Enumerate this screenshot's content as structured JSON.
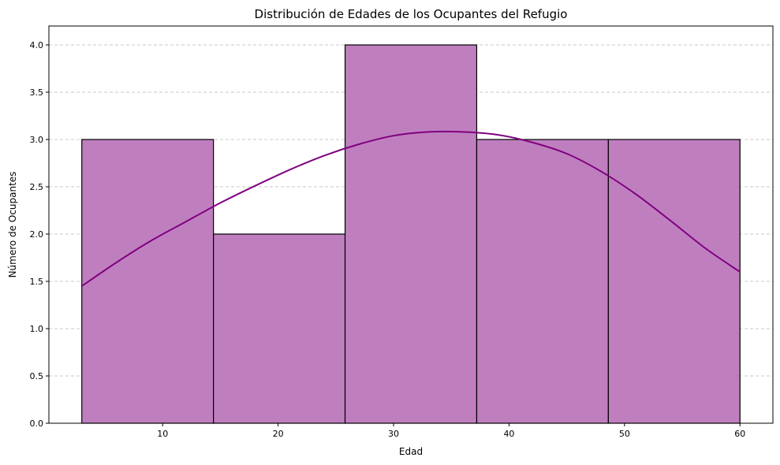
{
  "chart_data": {
    "type": "bar",
    "title": "Distribución de Edades de los Ocupantes del Refugio",
    "xlabel": "Edad",
    "ylabel": "Número de Ocupantes",
    "bins": [
      {
        "start": 3.0,
        "end": 14.4,
        "count": 3
      },
      {
        "start": 14.4,
        "end": 25.8,
        "count": 2
      },
      {
        "start": 25.8,
        "end": 37.2,
        "count": 4
      },
      {
        "start": 37.2,
        "end": 48.6,
        "count": 3
      },
      {
        "start": 48.6,
        "end": 60.0,
        "count": 3
      }
    ],
    "kde": {
      "x": [
        3,
        6,
        9,
        12,
        15,
        18,
        21,
        24,
        27,
        30,
        33,
        36,
        39,
        42,
        45,
        48,
        51,
        54,
        57,
        60
      ],
      "y": [
        1.45,
        1.7,
        1.93,
        2.13,
        2.33,
        2.51,
        2.68,
        2.83,
        2.95,
        3.04,
        3.08,
        3.08,
        3.05,
        2.97,
        2.85,
        2.66,
        2.42,
        2.14,
        1.85,
        1.6
      ]
    },
    "xlim": [
      0.15,
      62.85
    ],
    "ylim": [
      0,
      4.2
    ],
    "x_ticks": [
      "10",
      "20",
      "30",
      "40",
      "50",
      "60"
    ],
    "y_ticks": [
      "0.0",
      "0.5",
      "1.0",
      "1.5",
      "2.0",
      "2.5",
      "3.0",
      "3.5",
      "4.0"
    ],
    "grid": "y-dashed",
    "colors": {
      "bar_fill": "#bf7fbf",
      "bar_edge": "#000000",
      "kde_line": "#800080",
      "grid": "#c8c8c8"
    }
  }
}
